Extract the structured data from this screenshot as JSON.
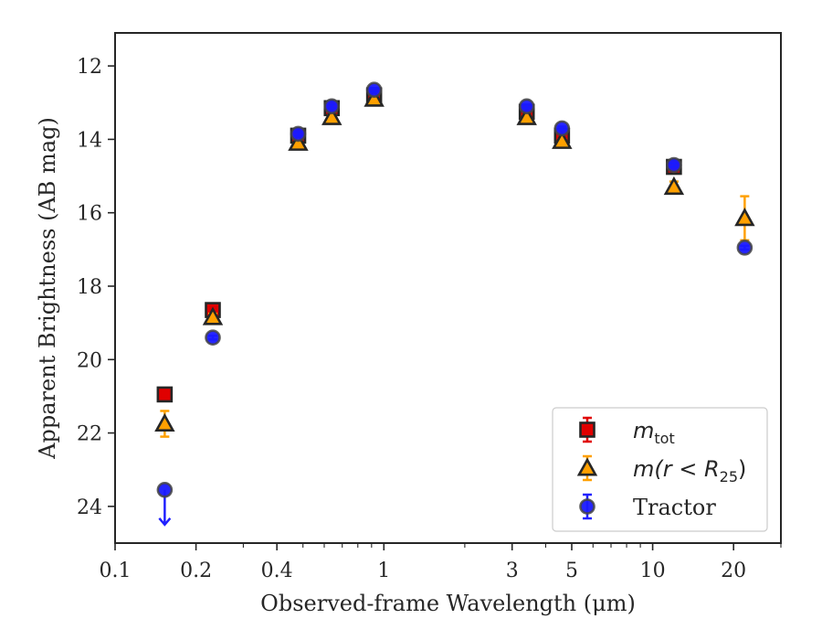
{
  "chart_data": {
    "type": "scatter",
    "title": "",
    "xlabel": "Observed-frame Wavelength (μm)",
    "ylabel": "Apparent Brightness (AB mag)",
    "x_scale": "log",
    "xlim": [
      0.1,
      30
    ],
    "ylim": [
      25,
      11.1
    ],
    "y_inverted": true,
    "x_ticks": [
      0.1,
      0.2,
      0.4,
      1,
      3,
      5,
      10,
      20
    ],
    "x_tick_labels": [
      "0.1",
      "0.2",
      "0.4",
      "1",
      "3",
      "5",
      "10",
      "20"
    ],
    "y_ticks": [
      12,
      14,
      16,
      18,
      20,
      22,
      24
    ],
    "y_tick_labels": [
      "12",
      "14",
      "16",
      "18",
      "20",
      "22",
      "24"
    ],
    "grid": false,
    "legend_position": "bottom-right",
    "series": [
      {
        "name": "m_tot",
        "legend_label": {
          "base": "m",
          "sub": "tot"
        },
        "marker": "square",
        "color": "#e00000",
        "errorbar_color": "#e00000",
        "points": [
          {
            "x": 0.153,
            "y": 20.95,
            "err": 0.05
          },
          {
            "x": 0.231,
            "y": 18.65,
            "err": 0.08
          },
          {
            "x": 0.48,
            "y": 13.9,
            "err": 0.05
          },
          {
            "x": 0.64,
            "y": 13.15,
            "err": 0.05
          },
          {
            "x": 0.92,
            "y": 12.8,
            "err": 0.05
          },
          {
            "x": 3.4,
            "y": 13.25,
            "err": 0.05
          },
          {
            "x": 4.6,
            "y": 13.9,
            "err": 0.1
          },
          {
            "x": 12.0,
            "y": 14.75,
            "err": 0.05
          }
        ]
      },
      {
        "name": "m(r < R25)",
        "legend_label": {
          "base": "m(r < R",
          "sub": "25",
          "tail": ")"
        },
        "marker": "triangle",
        "color": "#ffa000",
        "errorbar_color": "#ffa000",
        "points": [
          {
            "x": 0.153,
            "y": 21.75,
            "err": 0.35
          },
          {
            "x": 0.231,
            "y": 18.85,
            "err": 0.1
          },
          {
            "x": 0.48,
            "y": 14.1,
            "err": 0.05
          },
          {
            "x": 0.64,
            "y": 13.4,
            "err": 0.05
          },
          {
            "x": 0.92,
            "y": 12.9,
            "err": 0.05
          },
          {
            "x": 3.4,
            "y": 13.4,
            "err": 0.05
          },
          {
            "x": 4.6,
            "y": 14.05,
            "err": 0.05
          },
          {
            "x": 12.0,
            "y": 15.3,
            "err": 0.15
          },
          {
            "x": 22.0,
            "y": 16.15,
            "err": 0.6
          }
        ]
      },
      {
        "name": "Tractor",
        "marker": "circle",
        "color": "#1a1aff",
        "errorbar_color": "#2020ff",
        "points": [
          {
            "x": 0.153,
            "y": 23.55,
            "err": 0.0,
            "upper_limit": true
          },
          {
            "x": 0.231,
            "y": 19.4,
            "err": 0.05
          },
          {
            "x": 0.48,
            "y": 13.85,
            "err": 0.05
          },
          {
            "x": 0.64,
            "y": 13.1,
            "err": 0.05
          },
          {
            "x": 0.92,
            "y": 12.65,
            "err": 0.05
          },
          {
            "x": 3.4,
            "y": 13.1,
            "err": 0.05
          },
          {
            "x": 4.6,
            "y": 13.7,
            "err": 0.05
          },
          {
            "x": 12.0,
            "y": 14.7,
            "err": 0.05
          },
          {
            "x": 22.0,
            "y": 16.95,
            "err": 0.05
          }
        ]
      }
    ]
  }
}
